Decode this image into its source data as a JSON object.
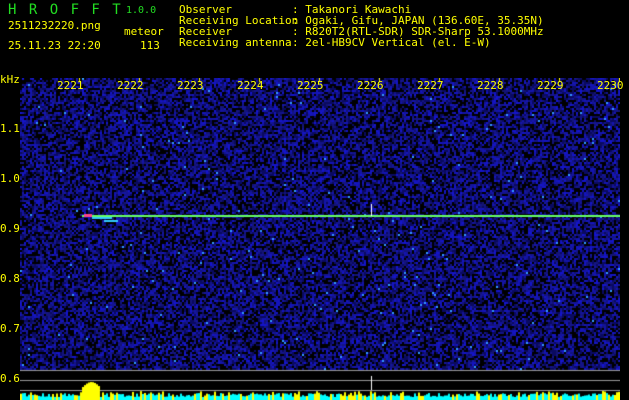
{
  "app": {
    "name": "H R O F F T",
    "version": "1.0.0"
  },
  "file": {
    "name": "2511232220.png",
    "datetime": "25.11.23 22:20"
  },
  "meteor": {
    "label": "meteor",
    "count": "113"
  },
  "info": [
    {
      "key": "Observer",
      "value": ": Takanori Kawachi"
    },
    {
      "key": "Receiving Location",
      "value": ": Ogaki, Gifu, JAPAN (136.60E, 35.35N)"
    },
    {
      "key": "Receiver",
      "value": ": R820T2(RTL-SDR) SDR-Sharp 53.1000MHz"
    },
    {
      "key": "Receiving antenna",
      "value": ": 2el-HB9CV Vertical (el. E-W)"
    }
  ],
  "axes": {
    "y_unit": "kHz",
    "y_ticks": [
      "1.1",
      "1.0",
      "0.9",
      "0.8",
      "0.7",
      "0.6"
    ],
    "x_ticks": [
      "2221",
      "2222",
      "2223",
      "2224",
      "2225",
      "2226",
      "2227",
      "2228",
      "2229",
      "2230"
    ]
  },
  "colors": {
    "background": "#000000",
    "text": "#ffff00",
    "title": "#22dd22",
    "noise": "#1a1aa0",
    "signal": "#66ff66",
    "bars_cyan": "#00ffff",
    "bars_yellow": "#ffff00"
  }
}
